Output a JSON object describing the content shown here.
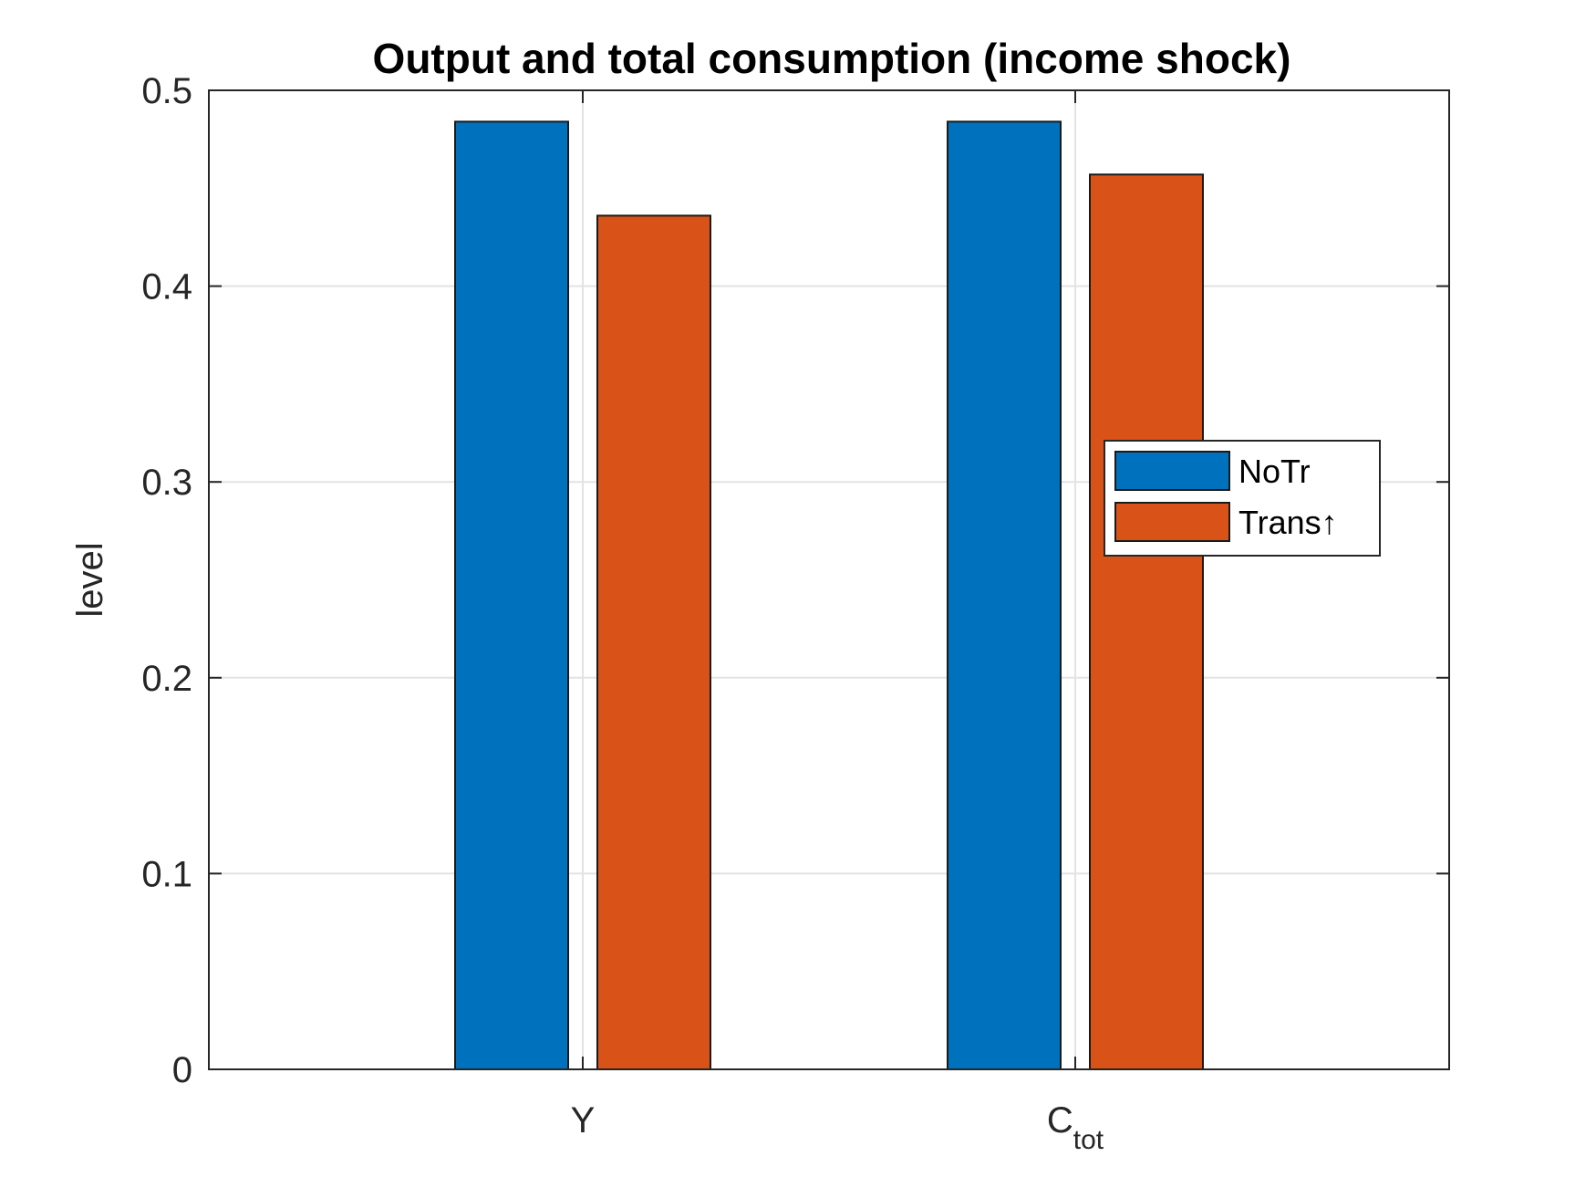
{
  "chart_data": {
    "type": "bar",
    "title": "Output and total consumption (income shock)",
    "xlabel": "",
    "ylabel": "level",
    "categories": [
      {
        "base": "Y",
        "sub": ""
      },
      {
        "base": "C",
        "sub": "tot"
      }
    ],
    "series": [
      {
        "name": "NoTr",
        "color": "#0072BD",
        "values": [
          0.484,
          0.484
        ]
      },
      {
        "name": "Trans↑",
        "color": "#D95319",
        "values": [
          0.436,
          0.457
        ]
      }
    ],
    "ylim": [
      0,
      0.5
    ],
    "yticks": [
      "0",
      "0.1",
      "0.2",
      "0.3",
      "0.4",
      "0.5"
    ],
    "grid": true,
    "legend_position": "right"
  }
}
